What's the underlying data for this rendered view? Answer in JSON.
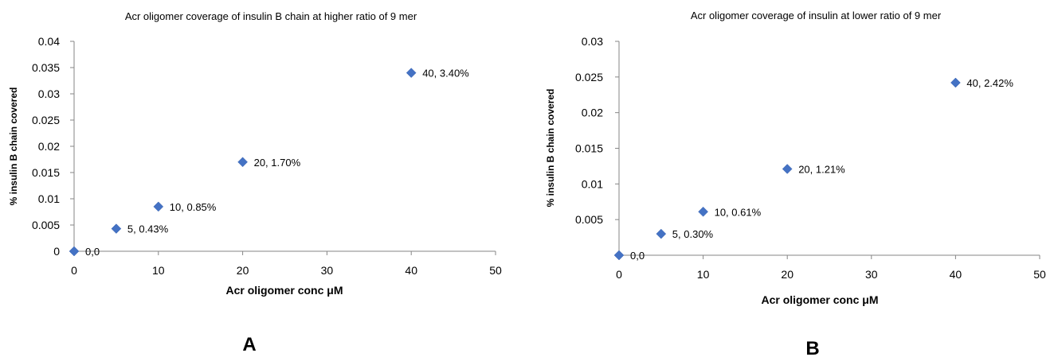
{
  "chart_data": [
    {
      "type": "scatter",
      "title": "Acr oligomer coverage of insulin B chain at higher ratio of 9 mer",
      "xlabel": "Acr oligomer conc μM",
      "ylabel": "% insulin B chain covered",
      "xlim": [
        0,
        50
      ],
      "ylim": [
        0,
        0.04
      ],
      "xticks": [
        "0",
        "10",
        "20",
        "30",
        "40",
        "50"
      ],
      "yticks": [
        "0",
        "0.005",
        "0.01",
        "0.015",
        "0.02",
        "0.025",
        "0.03",
        "0.035",
        "0.04"
      ],
      "grid": false,
      "marker_color": "#4472C4",
      "panel_label": "A",
      "points": [
        {
          "x": 0,
          "y": 0,
          "label": "0,0"
        },
        {
          "x": 5,
          "y": 0.0043,
          "label": "5, 0.43%"
        },
        {
          "x": 10,
          "y": 0.0085,
          "label": "10, 0.85%"
        },
        {
          "x": 20,
          "y": 0.017,
          "label": "20, 1.70%"
        },
        {
          "x": 40,
          "y": 0.034,
          "label": "40, 3.40%"
        }
      ]
    },
    {
      "type": "scatter",
      "title": "Acr oligomer coverage of insulin at lower ratio of 9 mer",
      "xlabel": "Acr oligomer conc μM",
      "ylabel": "% insulin B chain covered",
      "xlim": [
        0,
        50
      ],
      "ylim": [
        0,
        0.03
      ],
      "xticks": [
        "0",
        "10",
        "20",
        "30",
        "40",
        "50"
      ],
      "yticks": [
        "0.005",
        "0.01",
        "0.015",
        "0.02",
        "0.025",
        "0.03"
      ],
      "grid": false,
      "marker_color": "#4472C4",
      "panel_label": "B",
      "points": [
        {
          "x": 0,
          "y": 0,
          "label": "0,0"
        },
        {
          "x": 5,
          "y": 0.003,
          "label": "5, 0.30%"
        },
        {
          "x": 10,
          "y": 0.0061,
          "label": "10, 0.61%"
        },
        {
          "x": 20,
          "y": 0.0121,
          "label": "20, 1.21%"
        },
        {
          "x": 40,
          "y": 0.0242,
          "label": "40, 2.42%"
        }
      ]
    }
  ]
}
